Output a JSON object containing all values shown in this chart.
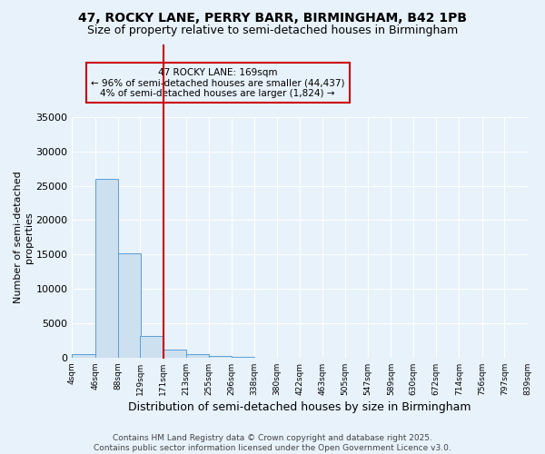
{
  "title1": "47, ROCKY LANE, PERRY BARR, BIRMINGHAM, B42 1PB",
  "title2": "Size of property relative to semi-detached houses in Birmingham",
  "xlabel": "Distribution of semi-detached houses by size in Birmingham",
  "ylabel": "Number of semi-detached\nproperties",
  "footer": "Contains HM Land Registry data © Crown copyright and database right 2025.\nContains public sector information licensed under the Open Government Licence v3.0.",
  "bins": [
    4,
    46,
    88,
    129,
    171,
    213,
    255,
    296,
    338,
    380,
    422,
    463,
    505,
    547,
    589,
    630,
    672,
    714,
    756,
    797,
    839
  ],
  "bin_labels": [
    "4sqm",
    "46sqm",
    "88sqm",
    "129sqm",
    "171sqm",
    "213sqm",
    "255sqm",
    "296sqm",
    "338sqm",
    "380sqm",
    "422sqm",
    "463sqm",
    "505sqm",
    "547sqm",
    "589sqm",
    "630sqm",
    "672sqm",
    "714sqm",
    "756sqm",
    "797sqm",
    "839sqm"
  ],
  "counts": [
    500,
    26000,
    15200,
    3200,
    1100,
    500,
    300,
    100,
    0,
    0,
    0,
    0,
    0,
    0,
    0,
    0,
    0,
    0,
    0,
    0
  ],
  "bar_color": "#cce0f0",
  "bar_edge_color": "#5a9fd4",
  "vline_x": 171,
  "vline_color": "#cc0000",
  "ylim": [
    0,
    35000
  ],
  "yticks": [
    0,
    5000,
    10000,
    15000,
    20000,
    25000,
    30000,
    35000
  ],
  "annotation_line1": "47 ROCKY LANE: 169sqm",
  "annotation_line2": "← 96% of semi-detached houses are smaller (44,437)",
  "annotation_line3": "4% of semi-detached houses are larger (1,824) →",
  "annotation_box_color": "#cc0000",
  "bg_color": "#e8f2fb",
  "title_fontsize": 10,
  "subtitle_fontsize": 9
}
